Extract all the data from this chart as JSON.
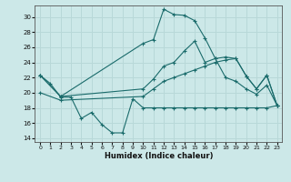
{
  "xlabel": "Humidex (Indice chaleur)",
  "bg_color": "#cce8e8",
  "line_color": "#1a6b6b",
  "grid_color": "#b8d8d8",
  "xlim": [
    -0.5,
    23.5
  ],
  "ylim": [
    13.5,
    31.5
  ],
  "yticks": [
    14,
    16,
    18,
    20,
    22,
    24,
    26,
    28,
    30
  ],
  "xticks": [
    0,
    1,
    2,
    3,
    4,
    5,
    6,
    7,
    8,
    9,
    10,
    11,
    12,
    13,
    14,
    15,
    16,
    17,
    18,
    19,
    20,
    21,
    22,
    23
  ],
  "lines": [
    {
      "x": [
        0,
        2,
        10,
        11,
        12,
        13,
        14,
        15,
        16,
        17,
        18,
        19,
        20,
        21,
        22,
        23
      ],
      "y": [
        22.3,
        19.5,
        26.5,
        27.0,
        31.0,
        30.3,
        30.2,
        29.5,
        27.2,
        24.5,
        22.0,
        21.5,
        20.5,
        19.8,
        21.0,
        18.3
      ]
    },
    {
      "x": [
        0,
        2,
        10,
        11,
        12,
        13,
        14,
        15,
        16,
        17,
        18,
        19,
        20,
        21,
        22,
        23
      ],
      "y": [
        22.3,
        19.5,
        20.5,
        21.8,
        23.5,
        24.0,
        25.5,
        26.8,
        24.0,
        24.5,
        24.7,
        24.5,
        22.2,
        20.5,
        22.3,
        18.3
      ]
    },
    {
      "x": [
        0,
        2,
        10,
        11,
        12,
        13,
        14,
        15,
        16,
        17,
        18,
        19,
        20,
        21,
        22,
        23
      ],
      "y": [
        20.0,
        19.0,
        19.5,
        20.5,
        21.5,
        22.0,
        22.5,
        23.0,
        23.5,
        24.0,
        24.3,
        24.5,
        22.2,
        20.5,
        22.3,
        18.3
      ]
    },
    {
      "x": [
        0,
        1,
        2,
        3,
        4,
        5,
        6,
        7,
        8,
        9,
        10,
        11,
        12,
        13,
        14,
        15,
        16,
        17,
        18,
        19,
        20,
        21,
        22,
        23
      ],
      "y": [
        22.3,
        21.2,
        19.4,
        19.4,
        16.6,
        17.4,
        15.8,
        14.7,
        14.7,
        19.2,
        18.0,
        18.0,
        18.0,
        18.0,
        18.0,
        18.0,
        18.0,
        18.0,
        18.0,
        18.0,
        18.0,
        18.0,
        18.0,
        18.3
      ]
    }
  ]
}
